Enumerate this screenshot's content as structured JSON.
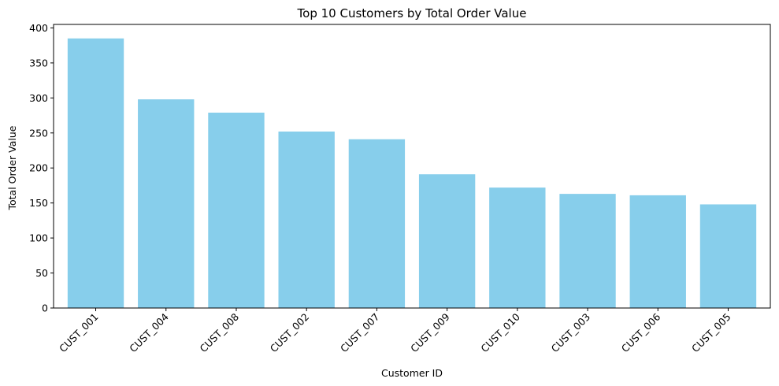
{
  "chart_data": {
    "type": "bar",
    "title": "Top 10 Customers by Total Order Value",
    "xlabel": "Customer ID",
    "ylabel": "Total Order Value",
    "categories": [
      "CUST_001",
      "CUST_004",
      "CUST_008",
      "CUST_002",
      "CUST_007",
      "CUST_009",
      "CUST_010",
      "CUST_003",
      "CUST_006",
      "CUST_005"
    ],
    "values": [
      385,
      298,
      279,
      252,
      241,
      191,
      172,
      163,
      161,
      148
    ],
    "ylim": [
      0,
      405
    ],
    "yticks": [
      0,
      50,
      100,
      150,
      200,
      250,
      300,
      350,
      400
    ],
    "bar_color": "#87CEEB",
    "grid": false,
    "xtick_rotation": 45
  }
}
